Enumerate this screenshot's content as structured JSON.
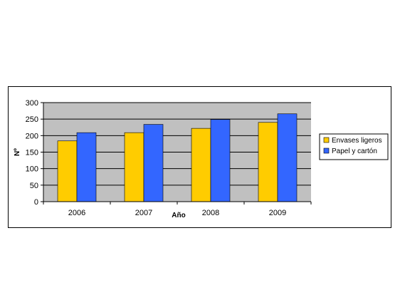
{
  "chart_data": {
    "type": "bar",
    "categories": [
      "2006",
      "2007",
      "2008",
      "2009"
    ],
    "series": [
      {
        "name": "Envases ligeros",
        "values": [
          184,
          209,
          222,
          240
        ],
        "color": "#FFCC00"
      },
      {
        "name": "Papel y cartón",
        "values": [
          209,
          234,
          249,
          266
        ],
        "color": "#3366FF"
      }
    ],
    "xlabel": "Año",
    "ylabel": "Nº",
    "ylim": [
      0,
      300
    ],
    "yticks": [
      "0",
      "50",
      "100",
      "150",
      "200",
      "250",
      "300"
    ],
    "grid": true,
    "legend": "right",
    "plot_background": "#C0C0C0"
  }
}
